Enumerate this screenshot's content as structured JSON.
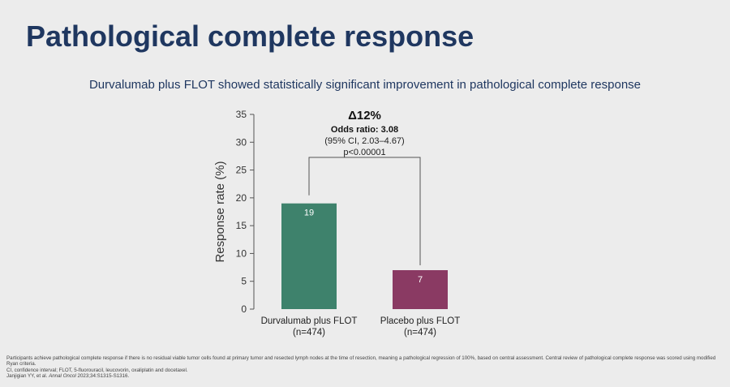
{
  "slide": {
    "title": "Pathological complete response",
    "subtitle": "Durvalumab plus FLOT showed statistically significant improvement in pathological complete response"
  },
  "chart_data": {
    "type": "bar",
    "categories": [
      "Durvalumab plus FLOT",
      "Placebo plus FLOT"
    ],
    "category_sublabels": [
      "(n=474)",
      "(n=474)"
    ],
    "values": [
      19,
      7
    ],
    "data_labels": [
      "19",
      "7"
    ],
    "bar_colors": [
      "#3e826c",
      "#8a3a63"
    ],
    "ylabel": "Response rate (%)",
    "ylim": [
      0,
      35
    ],
    "yticks": [
      0,
      5,
      10,
      15,
      20,
      25,
      30,
      35
    ],
    "grid": false,
    "annotation": {
      "delta": "Δ12%",
      "odds_ratio": "Odds ratio: 3.08",
      "ci": "(95% CI, 2.03–4.67)",
      "p_value": "p<0.00001"
    }
  },
  "footnotes": {
    "line1": "Participants achieve pathological complete response if there is no residual viable tumor cells found at primary tumor and resected lymph nodes at the time of resection, meaning a pathological regression of 100%, based on central assessment. Central review of pathological complete response was scored using modified Ryan criteria.",
    "line2": "CI, confidence interval; FLOT, 5-fluorouracil, leucovorin, oxaliplatin and docetaxel.",
    "ref_authors": "Janjigian YY, et al.",
    "ref_journal": "Annal Oncol",
    "ref_rest": "2023;34:S1315-S1316."
  }
}
